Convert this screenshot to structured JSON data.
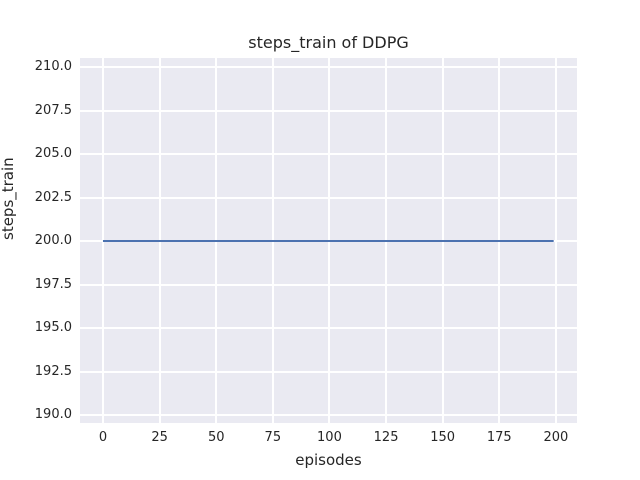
{
  "chart_data": {
    "type": "line",
    "title": "steps_train of DDPG",
    "xlabel": "episodes",
    "ylabel": "steps_train",
    "xlim": [
      -10.15,
      209.3
    ],
    "ylim": [
      189.54,
      210.52
    ],
    "x_tick_values": [
      0,
      25,
      50,
      75,
      100,
      125,
      150,
      175,
      200
    ],
    "x_tick_labels": [
      "0",
      "25",
      "50",
      "75",
      "100",
      "125",
      "150",
      "175",
      "200"
    ],
    "y_tick_values": [
      190.0,
      192.5,
      195.0,
      197.5,
      200.0,
      202.5,
      205.0,
      207.5,
      210.0
    ],
    "y_tick_labels": [
      "190.0",
      "192.5",
      "195.0",
      "197.5",
      "200.0",
      "202.5",
      "205.0",
      "207.5",
      "210.0"
    ],
    "grid": true,
    "legend": false,
    "series": [
      {
        "name": "steps_train",
        "color": "#4c72b0",
        "x": [
          0,
          199
        ],
        "y": [
          200,
          200
        ]
      }
    ],
    "style": {
      "plot_bg": "#eaeaf2",
      "grid_color": "#ffffff",
      "text_color": "#262626",
      "figure_bg": "#ffffff"
    }
  }
}
